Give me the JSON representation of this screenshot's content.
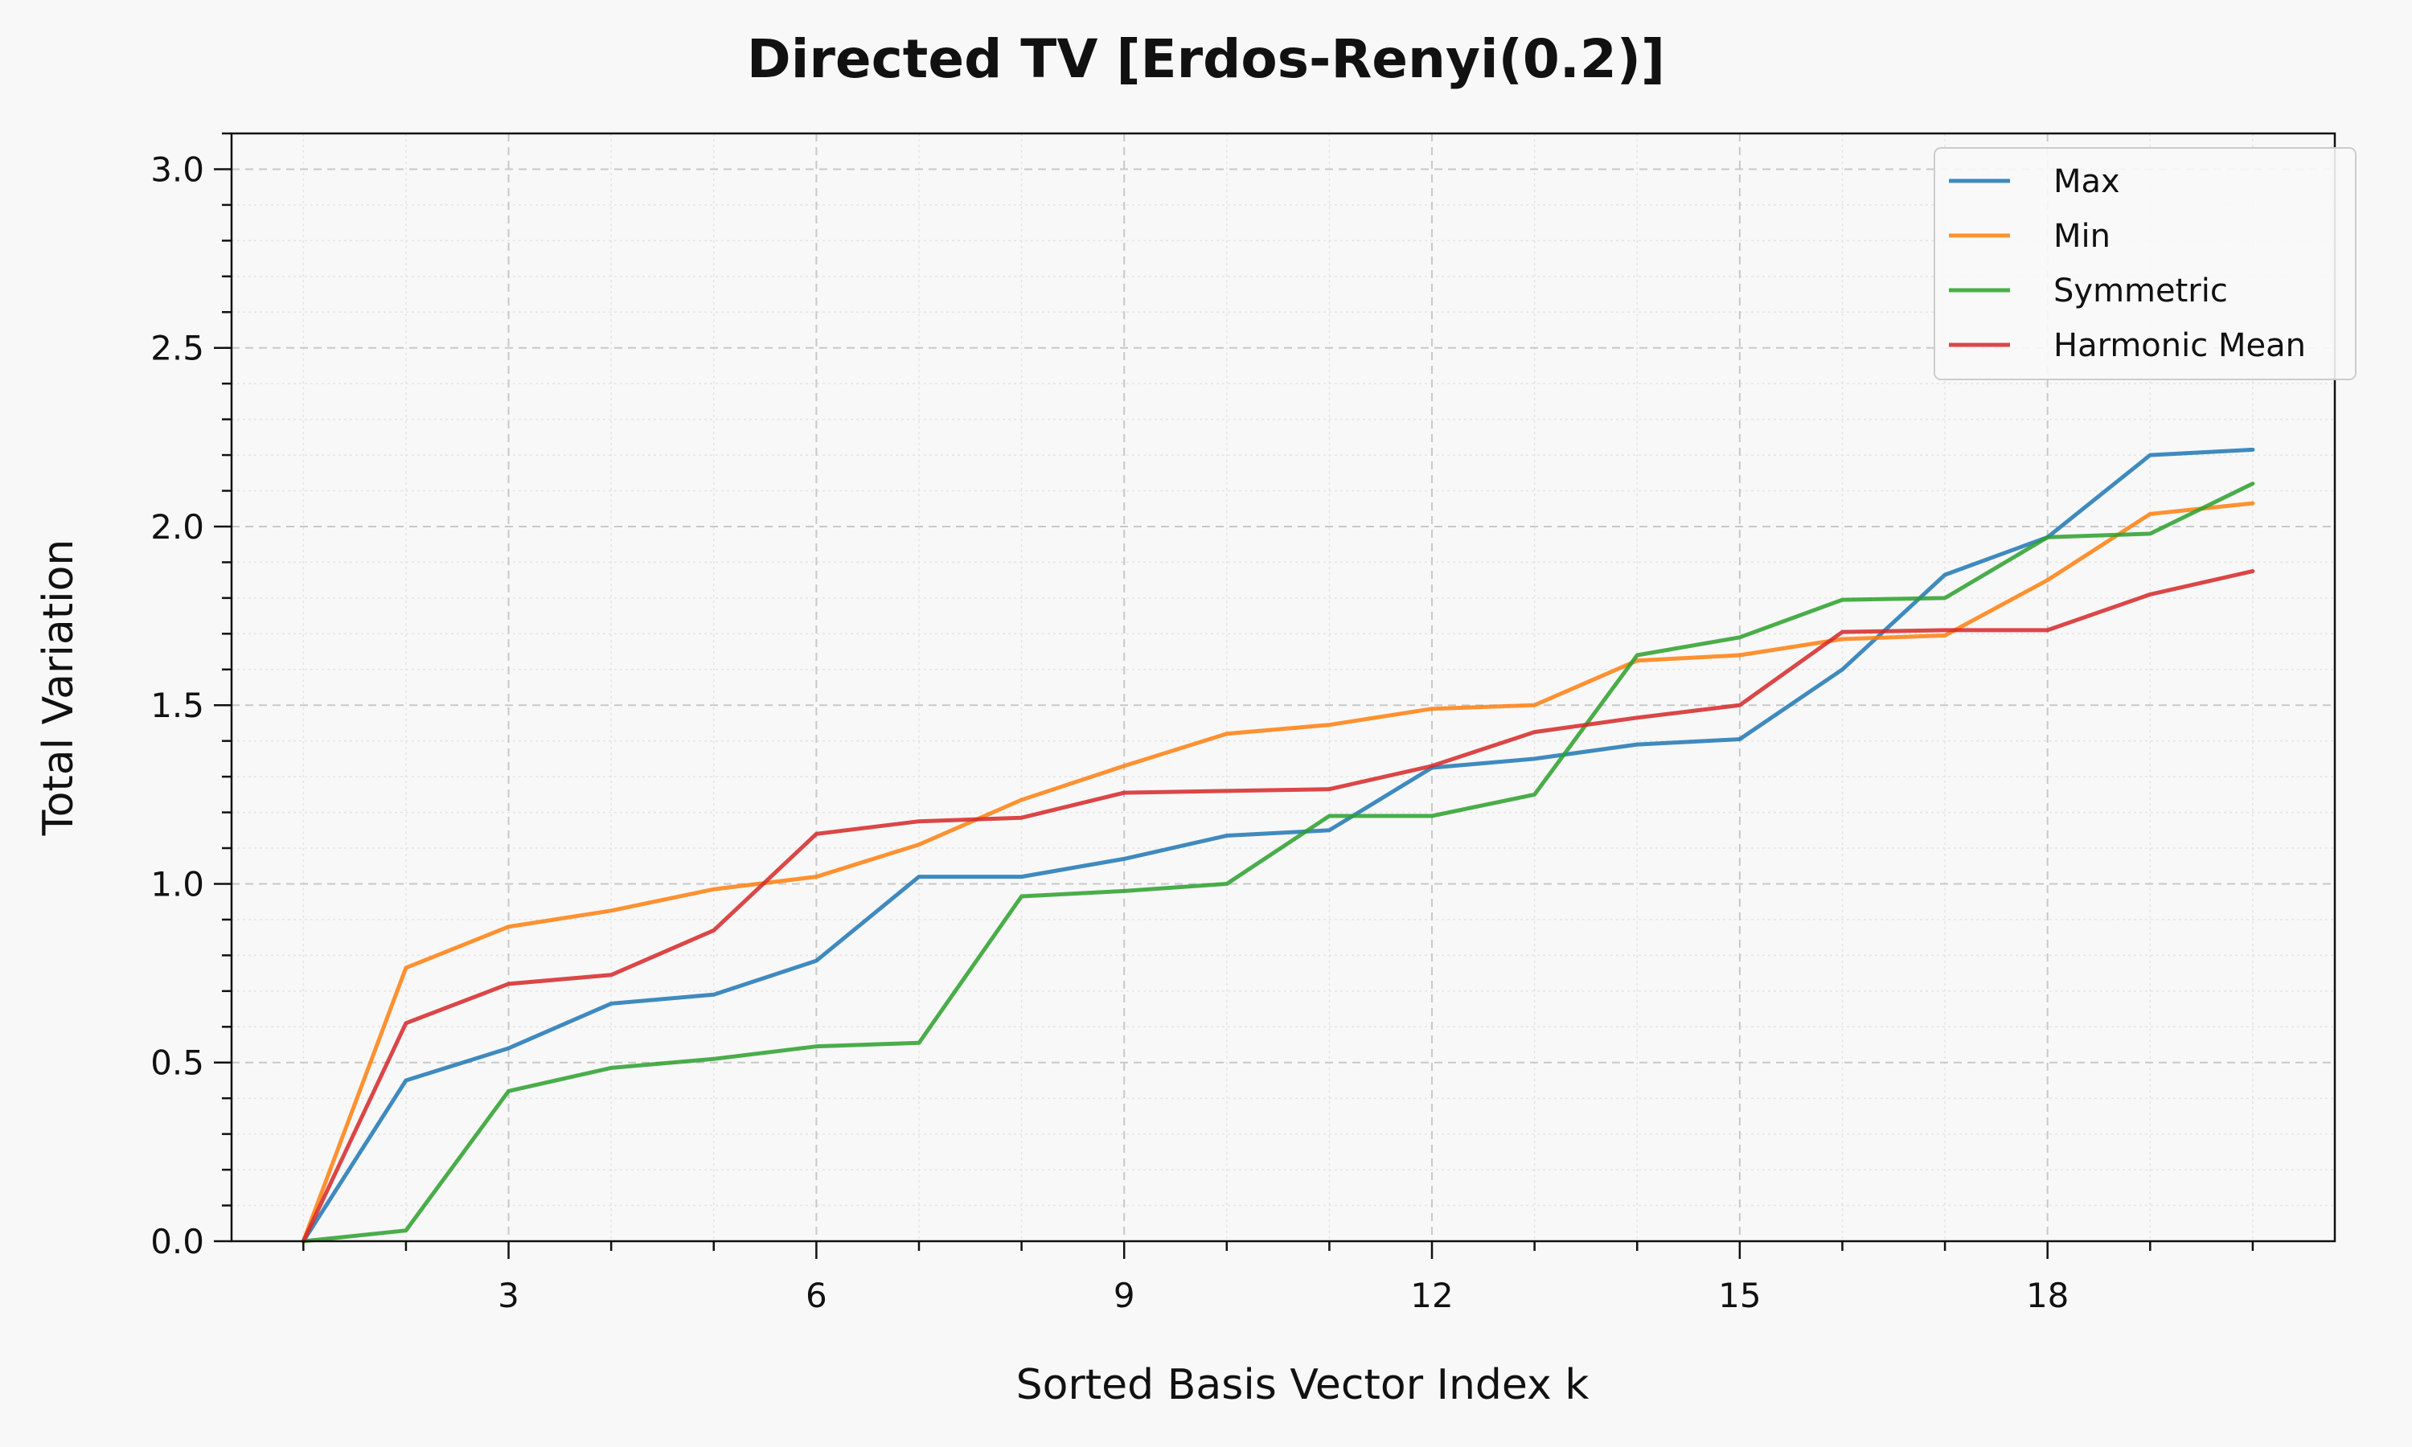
{
  "chart_data": {
    "type": "line",
    "title": "Directed TV [Erdos-Renyi(0.2)]",
    "xlabel": "Sorted Basis Vector Index k",
    "ylabel": "Total Variation",
    "xlim": [
      0.3,
      20.8
    ],
    "ylim": [
      0,
      3.1
    ],
    "xticks": [
      3,
      6,
      9,
      12,
      15,
      18
    ],
    "xticks_minor": [
      1,
      2,
      4,
      5,
      7,
      8,
      10,
      11,
      13,
      14,
      16,
      17,
      19,
      20
    ],
    "yticks": [
      0.0,
      0.5,
      1.0,
      1.5,
      2.0,
      2.5,
      3.0
    ],
    "yticks_minor_step": 0.1,
    "grid": true,
    "legend_position": "top-right",
    "x": [
      1,
      2,
      3,
      4,
      5,
      6,
      7,
      8,
      9,
      10,
      11,
      12,
      13,
      14,
      15,
      16,
      17,
      18,
      19,
      20
    ],
    "series": [
      {
        "name": "Max",
        "color": "#1f77b4",
        "values": [
          0.0,
          0.45,
          0.54,
          0.665,
          0.69,
          0.785,
          1.02,
          1.02,
          1.07,
          1.135,
          1.15,
          1.325,
          1.35,
          1.39,
          1.405,
          1.6,
          1.865,
          1.97,
          2.2,
          2.215
        ]
      },
      {
        "name": "Min",
        "color": "#ff7f0e",
        "values": [
          0.0,
          0.765,
          0.88,
          0.925,
          0.985,
          1.02,
          1.11,
          1.235,
          1.33,
          1.42,
          1.445,
          1.49,
          1.5,
          1.625,
          1.64,
          1.685,
          1.695,
          1.85,
          2.035,
          2.065
        ]
      },
      {
        "name": "Symmetric",
        "color": "#2ca02c",
        "values": [
          0.0,
          0.03,
          0.42,
          0.485,
          0.51,
          0.545,
          0.555,
          0.965,
          0.98,
          1.0,
          1.19,
          1.19,
          1.25,
          1.64,
          1.69,
          1.795,
          1.8,
          1.97,
          1.98,
          2.12
        ]
      },
      {
        "name": "Harmonic Mean",
        "color": "#d62728",
        "values": [
          0.0,
          0.61,
          0.72,
          0.745,
          0.87,
          1.14,
          1.175,
          1.185,
          1.255,
          1.26,
          1.265,
          1.33,
          1.425,
          1.465,
          1.5,
          1.705,
          1.71,
          1.71,
          1.81,
          1.875
        ]
      }
    ]
  }
}
